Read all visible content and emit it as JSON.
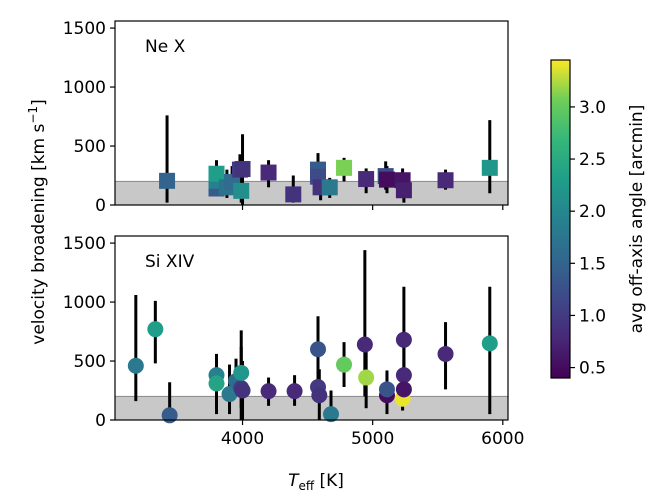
{
  "chart_data": {
    "type": "scatter",
    "ylabel": "velocity broadening [km s$^{-1}$]",
    "xlabel": "T_eff [K]",
    "xlabel_main": "T",
    "xlabel_sub": "eff",
    "xlabel_unit": " [K]",
    "ylabel_main": "velocity broadening [km s",
    "ylabel_sup": "−1",
    "ylabel_close": "]",
    "xlim": [
      3020,
      6040
    ],
    "xticks": [
      4000,
      5000,
      6000
    ],
    "xtick_labels": [
      "4000",
      "5000",
      "6000"
    ],
    "shaded_band": {
      "from": 0,
      "to": 200
    },
    "colorbar": {
      "label": "avg off-axis angle [arcmin]",
      "range": [
        0.4,
        3.45
      ],
      "ticks": [
        0.5,
        1.0,
        1.5,
        2.0,
        2.5,
        3.0
      ],
      "tick_labels": [
        "0.5",
        "1.0",
        "1.5",
        "2.0",
        "2.5",
        "3.0"
      ]
    },
    "panels": [
      {
        "name": "Ne X",
        "marker": "square",
        "ylim": [
          0,
          1560
        ],
        "yticks": [
          0,
          500,
          1000,
          1500
        ],
        "ytick_labels": [
          "0",
          "500",
          "1000",
          "1500"
        ],
        "points": [
          {
            "x": 3420,
            "y": 205,
            "ylo": 20,
            "yhi": 760,
            "c": 1.5
          },
          {
            "x": 3800,
            "y": 140,
            "ylo": 80,
            "yhi": 200,
            "c": 1.4
          },
          {
            "x": 3800,
            "y": 205,
            "ylo": 120,
            "yhi": 300,
            "c": 1.9
          },
          {
            "x": 3800,
            "y": 265,
            "ylo": 160,
            "yhi": 380,
            "c": 2.3
          },
          {
            "x": 3880,
            "y": 150,
            "ylo": 60,
            "yhi": 300,
            "c": 1.7
          },
          {
            "x": 3920,
            "y": 195,
            "ylo": 90,
            "yhi": 330,
            "c": 1.6
          },
          {
            "x": 3980,
            "y": 300,
            "ylo": 120,
            "yhi": 430,
            "c": 1.0
          },
          {
            "x": 4000,
            "y": 305,
            "ylo": 0,
            "yhi": 600,
            "c": 0.9
          },
          {
            "x": 3990,
            "y": 120,
            "ylo": 20,
            "yhi": 350,
            "c": 2.1
          },
          {
            "x": 4200,
            "y": 275,
            "ylo": 150,
            "yhi": 380,
            "c": 0.8
          },
          {
            "x": 4390,
            "y": 90,
            "ylo": 20,
            "yhi": 250,
            "c": 0.9
          },
          {
            "x": 4580,
            "y": 300,
            "ylo": 170,
            "yhi": 440,
            "c": 1.4
          },
          {
            "x": 4580,
            "y": 240,
            "ylo": 120,
            "yhi": 380,
            "c": 1.2
          },
          {
            "x": 4600,
            "y": 150,
            "ylo": 40,
            "yhi": 300,
            "c": 0.9
          },
          {
            "x": 4670,
            "y": 150,
            "ylo": 60,
            "yhi": 230,
            "c": 1.8
          },
          {
            "x": 4780,
            "y": 315,
            "ylo": 200,
            "yhi": 400,
            "c": 3.1
          },
          {
            "x": 4950,
            "y": 220,
            "ylo": 100,
            "yhi": 310,
            "c": 0.8
          },
          {
            "x": 5100,
            "y": 245,
            "ylo": 130,
            "yhi": 370,
            "c": 1.2
          },
          {
            "x": 5110,
            "y": 215,
            "ylo": 100,
            "yhi": 330,
            "c": 0.5
          },
          {
            "x": 5230,
            "y": 210,
            "ylo": 90,
            "yhi": 310,
            "c": 0.6
          },
          {
            "x": 5240,
            "y": 125,
            "ylo": 20,
            "yhi": 270,
            "c": 0.7
          },
          {
            "x": 5560,
            "y": 210,
            "ylo": 130,
            "yhi": 300,
            "c": 0.8
          },
          {
            "x": 5900,
            "y": 315,
            "ylo": 100,
            "yhi": 720,
            "c": 2.2
          }
        ]
      },
      {
        "name": "Si XIV",
        "marker": "circle",
        "ylim": [
          0,
          1560
        ],
        "yticks": [
          0,
          500,
          1000,
          1500
        ],
        "ytick_labels": [
          "0",
          "500",
          "1000",
          "1500"
        ],
        "points": [
          {
            "x": 3180,
            "y": 460,
            "ylo": 160,
            "yhi": 1060,
            "c": 1.8
          },
          {
            "x": 3330,
            "y": 770,
            "ylo": 480,
            "yhi": 1010,
            "c": 2.3
          },
          {
            "x": 3440,
            "y": 40,
            "ylo": 0,
            "yhi": 320,
            "c": 1.4
          },
          {
            "x": 3800,
            "y": 380,
            "ylo": 160,
            "yhi": 560,
            "c": 1.9
          },
          {
            "x": 3800,
            "y": 310,
            "ylo": 50,
            "yhi": 560,
            "c": 2.4
          },
          {
            "x": 3900,
            "y": 220,
            "ylo": 50,
            "yhi": 470,
            "c": 1.8
          },
          {
            "x": 3950,
            "y": 330,
            "ylo": 200,
            "yhi": 520,
            "c": 1.6
          },
          {
            "x": 3990,
            "y": 270,
            "ylo": 0,
            "yhi": 760,
            "c": 1.0
          },
          {
            "x": 3990,
            "y": 400,
            "ylo": 100,
            "yhi": 620,
            "c": 2.2
          },
          {
            "x": 4000,
            "y": 250,
            "ylo": 0,
            "yhi": 500,
            "c": 0.9
          },
          {
            "x": 4200,
            "y": 245,
            "ylo": 120,
            "yhi": 360,
            "c": 0.8
          },
          {
            "x": 4400,
            "y": 245,
            "ylo": 120,
            "yhi": 380,
            "c": 0.8
          },
          {
            "x": 4580,
            "y": 600,
            "ylo": 270,
            "yhi": 880,
            "c": 1.3
          },
          {
            "x": 4580,
            "y": 280,
            "ylo": 160,
            "yhi": 420,
            "c": 1.0
          },
          {
            "x": 4590,
            "y": 210,
            "ylo": 0,
            "yhi": 430,
            "c": 0.9
          },
          {
            "x": 4680,
            "y": 50,
            "ylo": 0,
            "yhi": 250,
            "c": 1.8
          },
          {
            "x": 4780,
            "y": 470,
            "ylo": 280,
            "yhi": 660,
            "c": 3.0
          },
          {
            "x": 4940,
            "y": 640,
            "ylo": 200,
            "yhi": 1440,
            "c": 0.8
          },
          {
            "x": 4950,
            "y": 360,
            "ylo": 100,
            "yhi": 580,
            "c": 3.2
          },
          {
            "x": 5110,
            "y": 210,
            "ylo": 50,
            "yhi": 420,
            "c": 0.5
          },
          {
            "x": 5110,
            "y": 260,
            "ylo": 130,
            "yhi": 400,
            "c": 1.3
          },
          {
            "x": 5240,
            "y": 680,
            "ylo": 250,
            "yhi": 1130,
            "c": 0.8
          },
          {
            "x": 5240,
            "y": 380,
            "ylo": 120,
            "yhi": 640,
            "c": 0.8
          },
          {
            "x": 5230,
            "y": 180,
            "ylo": 80,
            "yhi": 280,
            "c": 3.4
          },
          {
            "x": 5240,
            "y": 260,
            "ylo": 150,
            "yhi": 380,
            "c": 0.6
          },
          {
            "x": 5560,
            "y": 560,
            "ylo": 260,
            "yhi": 830,
            "c": 0.8
          },
          {
            "x": 5900,
            "y": 650,
            "ylo": 50,
            "yhi": 1130,
            "c": 2.3
          }
        ]
      }
    ]
  }
}
